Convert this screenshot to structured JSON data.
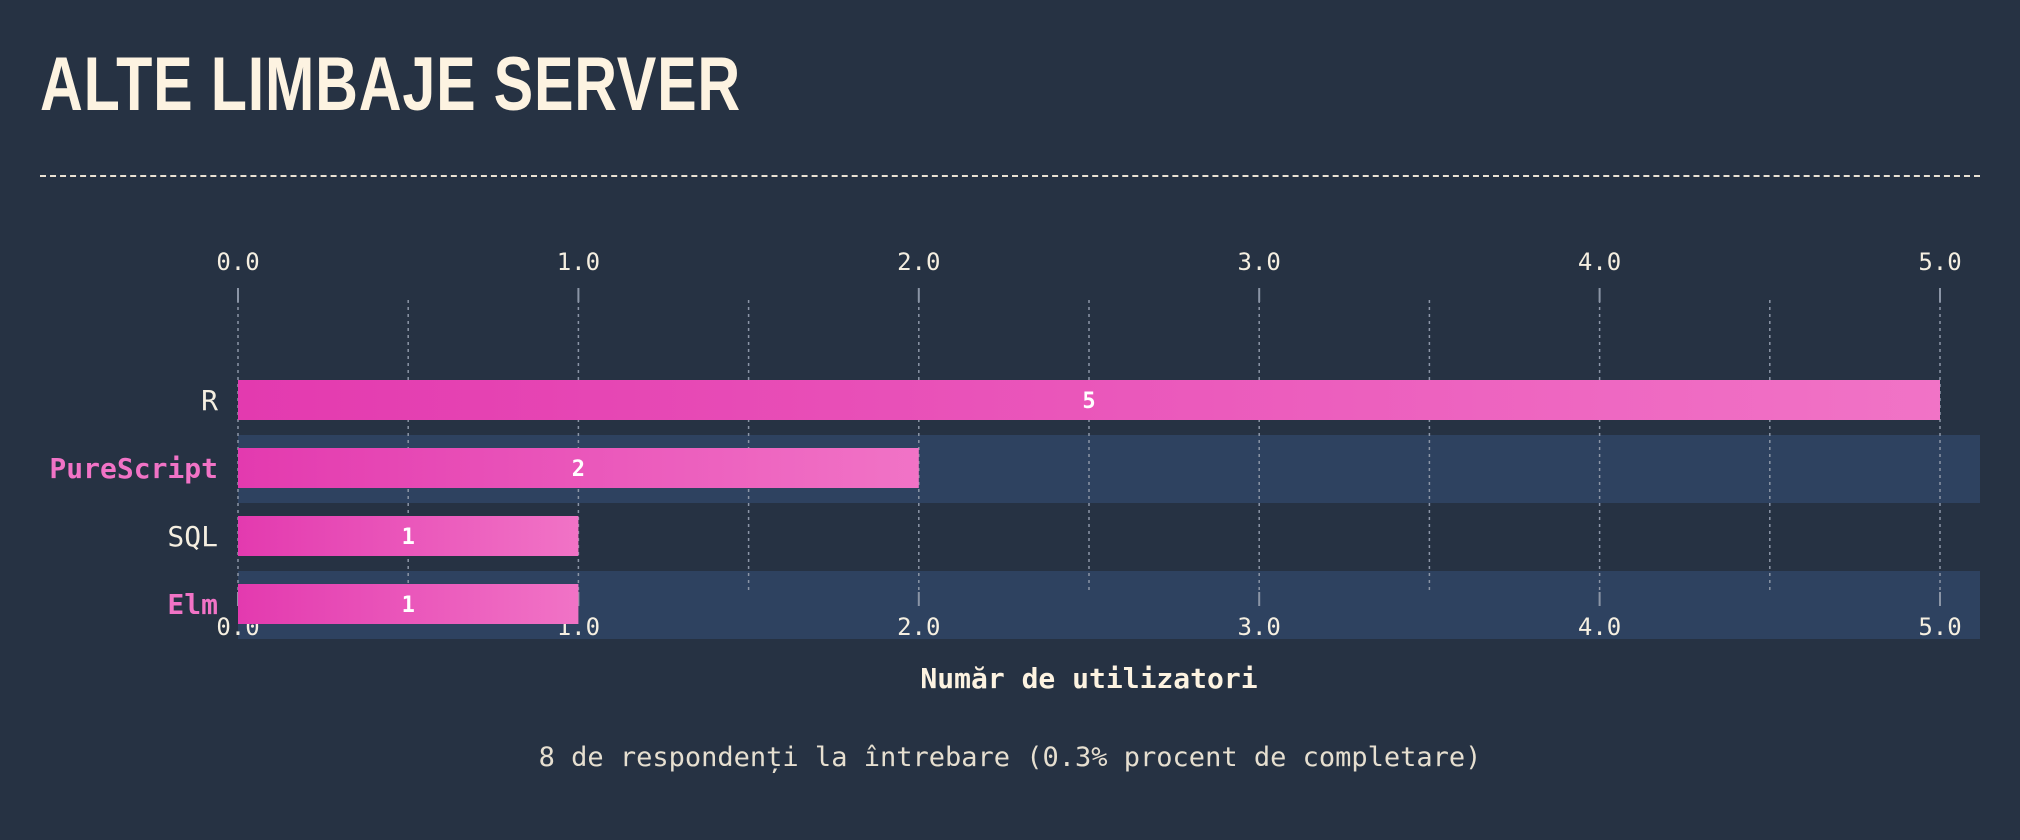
{
  "header": {
    "title": "ALTE LIMBAJE SERVER"
  },
  "footer": {
    "note": "8 de respondenți la întrebare (0.3% procent de completare)"
  },
  "colors": {
    "background": "#263243",
    "highlight_row": "#2e4260",
    "bar_start": "#e33aaf",
    "bar_end": "#f173c6",
    "highlight_text": "#f173c6",
    "text": "#f5efe1",
    "grid": "#8b95a6"
  },
  "chart_data": {
    "type": "bar",
    "orientation": "horizontal",
    "categories": [
      "R",
      "PureScript",
      "SQL",
      "Elm"
    ],
    "values": [
      5,
      2,
      1,
      1
    ],
    "value_labels": [
      "5",
      "2",
      "1",
      "1"
    ],
    "highlighted": [
      false,
      true,
      false,
      true
    ],
    "xlabel": "Număr de utilizatori",
    "xlim": [
      0,
      5
    ],
    "xticks": [
      "0.0",
      "1.0",
      "2.0",
      "3.0",
      "4.0",
      "5.0"
    ],
    "minor_grid_step": 0.5,
    "grid": true
  }
}
